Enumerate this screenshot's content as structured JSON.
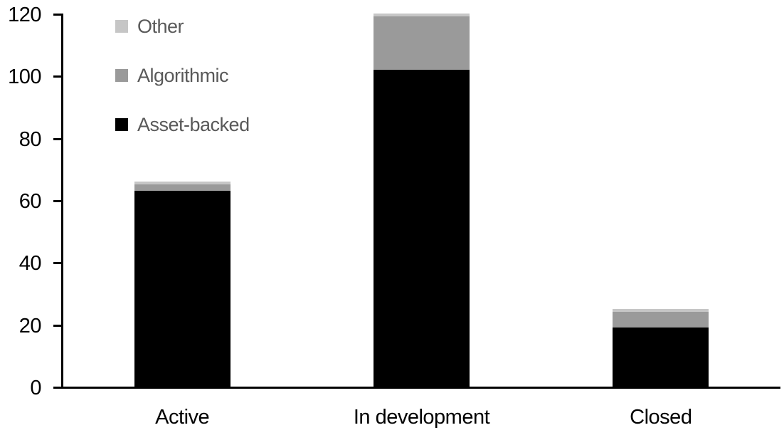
{
  "chart_data": {
    "type": "bar",
    "stacked": true,
    "title": "",
    "xlabel": "",
    "ylabel": "",
    "categories": [
      "Active",
      "In development",
      "Closed"
    ],
    "series": [
      {
        "name": "Asset-backed",
        "color": "#000000",
        "values": [
          63,
          102,
          19
        ]
      },
      {
        "name": "Algorithmic",
        "color": "#9a9a9a",
        "values": [
          2,
          17,
          5
        ]
      },
      {
        "name": "Other",
        "color": "#c6c6c6",
        "values": [
          1,
          1,
          1
        ]
      }
    ],
    "totals": [
      66,
      120,
      25
    ],
    "ylim": [
      0,
      120
    ],
    "yticks": [
      0,
      20,
      40,
      60,
      80,
      100,
      120
    ],
    "grid": false,
    "legend_position": "top-left",
    "legend": [
      {
        "label": "Other",
        "color": "#c6c6c6"
      },
      {
        "label": "Algorithmic",
        "color": "#9a9a9a"
      },
      {
        "label": "Asset-backed",
        "color": "#000000"
      }
    ],
    "colors": {
      "axis": "#000000",
      "tick_label": "#000000",
      "legend_text": "#595959",
      "background": "#ffffff"
    }
  }
}
